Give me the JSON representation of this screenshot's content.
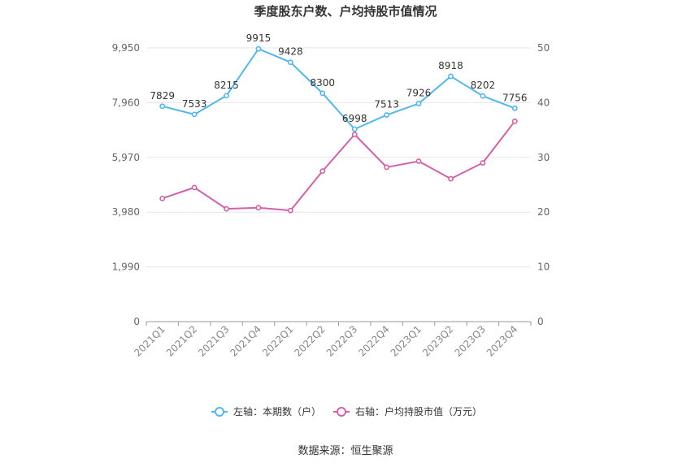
{
  "chart_data": {
    "type": "line",
    "title": "季度股东户数、户均持股市值情况",
    "categories": [
      "2021Q1",
      "2021Q2",
      "2021Q3",
      "2021Q4",
      "2022Q1",
      "2022Q2",
      "2022Q3",
      "2022Q4",
      "2023Q1",
      "2023Q2",
      "2023Q3",
      "2023Q4"
    ],
    "y_left": {
      "ticks": [
        "0",
        "1,990",
        "3,980",
        "5,970",
        "7,960",
        "9,950"
      ],
      "min": 0,
      "max": 9950
    },
    "y_right": {
      "ticks": [
        "0",
        "10",
        "20",
        "30",
        "40",
        "50"
      ],
      "min": 0,
      "max": 50
    },
    "series": [
      {
        "name": "左轴：本期数（户）",
        "axis": "left",
        "color": "#4fb8ee",
        "values": [
          7829,
          7533,
          8215,
          9915,
          9428,
          8300,
          6998,
          7513,
          7926,
          8918,
          8202,
          7756
        ],
        "labels": [
          "7829",
          "7533",
          "8215",
          "9915",
          "9428",
          "8300",
          "6998",
          "7513",
          "7926",
          "8918",
          "8202",
          "7756"
        ]
      },
      {
        "name": "右轴：户均持股市值（万元）",
        "axis": "right",
        "color": "#d45faa",
        "values": [
          22.5,
          24.5,
          20.6,
          20.8,
          20.3,
          27.5,
          34.2,
          28.2,
          29.3,
          26.1,
          29.0,
          36.6
        ]
      }
    ],
    "grid": true,
    "legend_position": "bottom"
  },
  "source_text": "数据来源：恒生聚源"
}
